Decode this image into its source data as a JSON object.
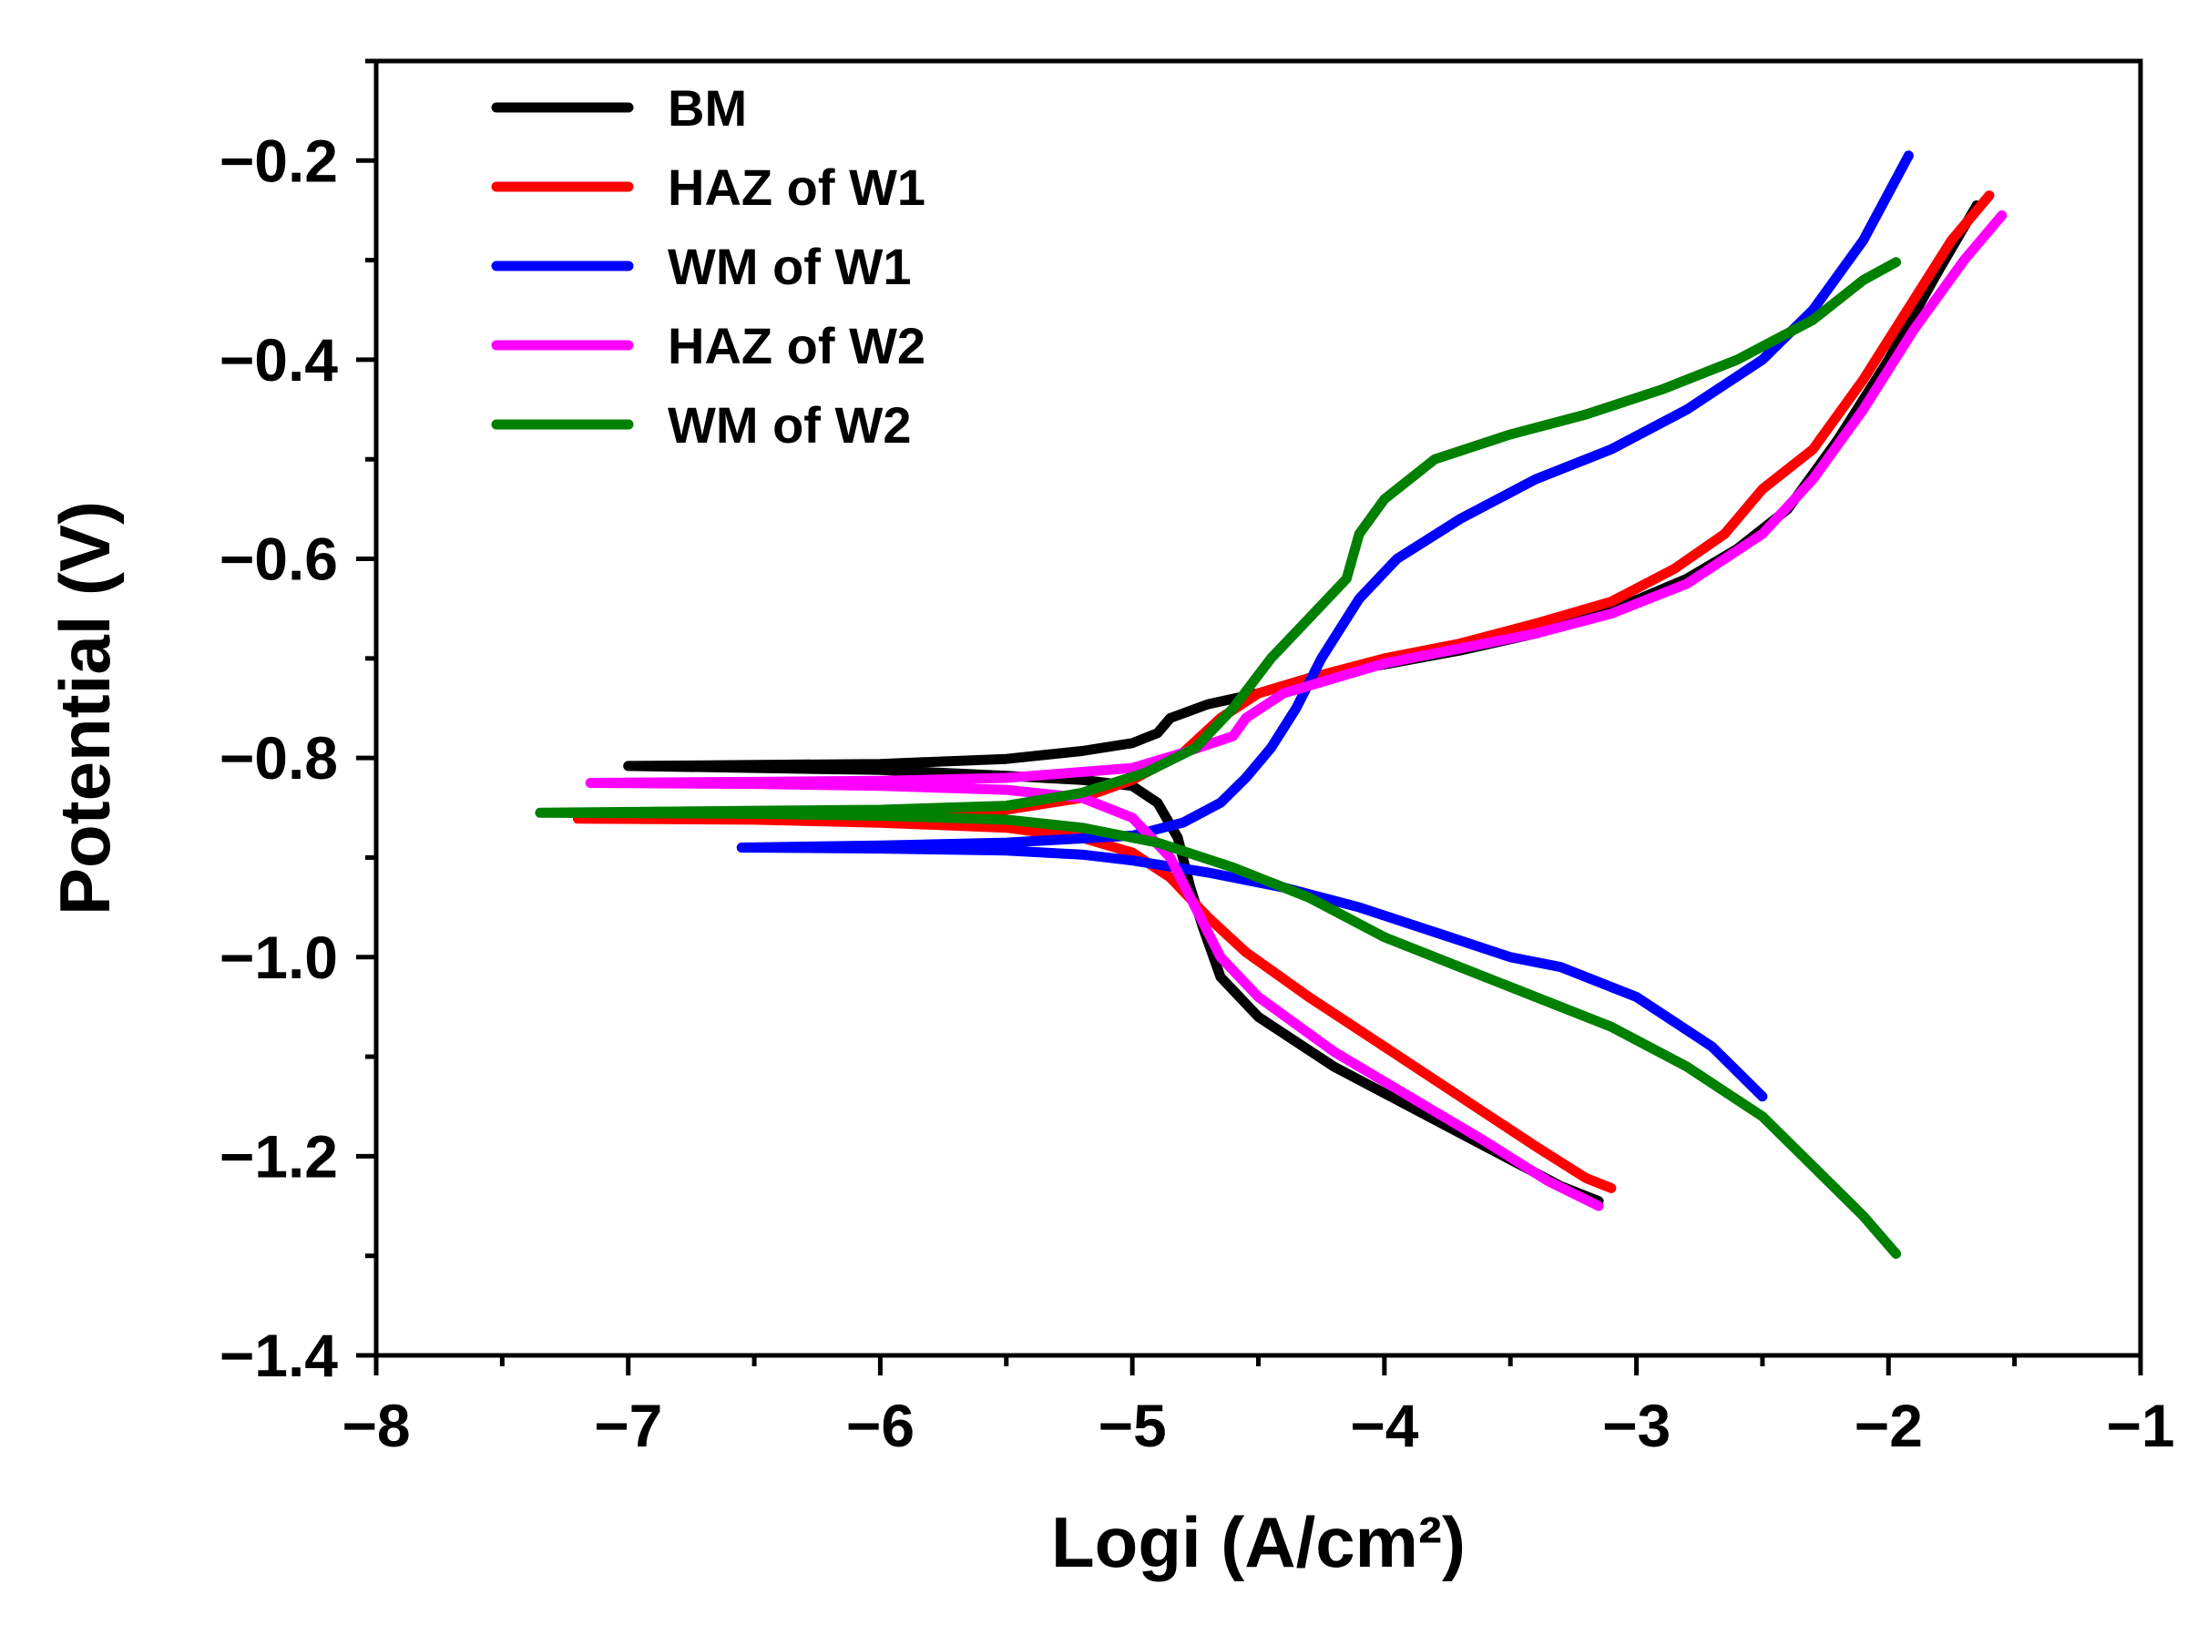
{
  "chart_data": {
    "type": "line",
    "title": "",
    "xlabel": "Logi (A/cm²)",
    "ylabel": "Potential (V)",
    "xlim": [
      -8,
      -1
    ],
    "ylim": [
      -1.4,
      -0.1
    ],
    "x_ticks": [
      -8,
      -7,
      -6,
      -5,
      -4,
      -3,
      -2,
      -1
    ],
    "x_tick_labels": [
      "−8",
      "−7",
      "−6",
      "−5",
      "−4",
      "−3",
      "−2",
      "−1"
    ],
    "y_ticks": [
      -0.2,
      -0.4,
      -0.6,
      -0.8,
      -1.0,
      -1.2,
      -1.4
    ],
    "y_tick_labels": [
      "−0.2",
      "−0.4",
      "−0.6",
      "−0.8",
      "−1.0",
      "−1.2",
      "−1.4"
    ],
    "grid": false,
    "legend_position": "top-left",
    "series": [
      {
        "name": "BM",
        "color": "#000000",
        "points": [
          [
            -7.0,
            -0.808
          ],
          [
            -6.0,
            -0.806
          ],
          [
            -5.5,
            -0.801
          ],
          [
            -5.2,
            -0.793
          ],
          [
            -5.0,
            -0.785
          ],
          [
            -4.9,
            -0.775
          ],
          [
            -4.85,
            -0.76
          ],
          [
            -4.7,
            -0.746
          ],
          [
            -4.5,
            -0.735
          ],
          [
            -4.3,
            -0.72
          ],
          [
            -4.0,
            -0.706
          ],
          [
            -3.7,
            -0.692
          ],
          [
            -3.4,
            -0.675
          ],
          [
            -3.1,
            -0.652
          ],
          [
            -2.8,
            -0.62
          ],
          [
            -2.6,
            -0.59
          ],
          [
            -2.4,
            -0.55
          ],
          [
            -2.2,
            -0.48
          ],
          [
            -2.0,
            -0.4
          ],
          [
            -1.8,
            -0.31
          ],
          [
            -1.65,
            -0.245
          ],
          null,
          [
            -7.0,
            -0.808
          ],
          [
            -6.0,
            -0.812
          ],
          [
            -5.5,
            -0.818
          ],
          [
            -5.2,
            -0.822
          ],
          [
            -5.0,
            -0.828
          ],
          [
            -4.9,
            -0.845
          ],
          [
            -4.82,
            -0.88
          ],
          [
            -4.77,
            -0.93
          ],
          [
            -4.72,
            -0.97
          ],
          [
            -4.65,
            -1.02
          ],
          [
            -4.5,
            -1.06
          ],
          [
            -4.2,
            -1.11
          ],
          [
            -3.9,
            -1.15
          ],
          [
            -3.6,
            -1.19
          ],
          [
            -3.3,
            -1.23
          ],
          [
            -3.15,
            -1.245
          ]
        ]
      },
      {
        "name": "HAZ of W1",
        "color": "#ff0000",
        "points": [
          [
            -7.2,
            -0.861
          ],
          [
            -6.5,
            -0.86
          ],
          [
            -6.0,
            -0.858
          ],
          [
            -5.5,
            -0.852
          ],
          [
            -5.2,
            -0.84
          ],
          [
            -5.0,
            -0.822
          ],
          [
            -4.8,
            -0.795
          ],
          [
            -4.65,
            -0.76
          ],
          [
            -4.5,
            -0.735
          ],
          [
            -4.3,
            -0.72
          ],
          [
            -4.0,
            -0.7
          ],
          [
            -3.7,
            -0.685
          ],
          [
            -3.4,
            -0.665
          ],
          [
            -3.1,
            -0.643
          ],
          [
            -2.85,
            -0.61
          ],
          [
            -2.65,
            -0.575
          ],
          [
            -2.5,
            -0.53
          ],
          [
            -2.3,
            -0.49
          ],
          [
            -2.1,
            -0.42
          ],
          [
            -1.9,
            -0.34
          ],
          [
            -1.75,
            -0.28
          ],
          [
            -1.6,
            -0.235
          ],
          null,
          [
            -7.2,
            -0.861
          ],
          [
            -6.5,
            -0.862
          ],
          [
            -6.0,
            -0.865
          ],
          [
            -5.5,
            -0.87
          ],
          [
            -5.2,
            -0.88
          ],
          [
            -5.0,
            -0.895
          ],
          [
            -4.85,
            -0.92
          ],
          [
            -4.7,
            -0.96
          ],
          [
            -4.55,
            -0.995
          ],
          [
            -4.3,
            -1.04
          ],
          [
            -4.0,
            -1.09
          ],
          [
            -3.7,
            -1.14
          ],
          [
            -3.4,
            -1.19
          ],
          [
            -3.2,
            -1.222
          ],
          [
            -3.1,
            -1.232
          ]
        ]
      },
      {
        "name": "WM of W1",
        "color": "#0000ff",
        "points": [
          [
            -6.55,
            -0.89
          ],
          [
            -6.0,
            -0.888
          ],
          [
            -5.5,
            -0.885
          ],
          [
            -5.0,
            -0.878
          ],
          [
            -4.8,
            -0.865
          ],
          [
            -4.65,
            -0.845
          ],
          [
            -4.55,
            -0.82
          ],
          [
            -4.45,
            -0.79
          ],
          [
            -4.35,
            -0.75
          ],
          [
            -4.25,
            -0.7
          ],
          [
            -4.1,
            -0.64
          ],
          [
            -3.95,
            -0.6
          ],
          [
            -3.7,
            -0.56
          ],
          [
            -3.4,
            -0.52
          ],
          [
            -3.1,
            -0.49
          ],
          [
            -2.8,
            -0.45
          ],
          [
            -2.5,
            -0.4
          ],
          [
            -2.3,
            -0.35
          ],
          [
            -2.1,
            -0.28
          ],
          [
            -1.92,
            -0.195
          ],
          null,
          [
            -6.55,
            -0.89
          ],
          [
            -6.0,
            -0.891
          ],
          [
            -5.5,
            -0.893
          ],
          [
            -5.2,
            -0.897
          ],
          [
            -5.0,
            -0.903
          ],
          [
            -4.7,
            -0.915
          ],
          [
            -4.4,
            -0.93
          ],
          [
            -4.1,
            -0.95
          ],
          [
            -3.8,
            -0.975
          ],
          [
            -3.5,
            -1.0
          ],
          [
            -3.3,
            -1.01
          ],
          [
            -3.0,
            -1.04
          ],
          [
            -2.7,
            -1.09
          ],
          [
            -2.5,
            -1.14
          ]
        ]
      },
      {
        "name": "HAZ of W2",
        "color": "#ff00ff",
        "points": [
          [
            -7.15,
            -0.825
          ],
          [
            -6.5,
            -0.824
          ],
          [
            -6.0,
            -0.823
          ],
          [
            -5.5,
            -0.82
          ],
          [
            -5.0,
            -0.81
          ],
          [
            -4.8,
            -0.795
          ],
          [
            -4.6,
            -0.778
          ],
          [
            -4.55,
            -0.76
          ],
          [
            -4.4,
            -0.735
          ],
          [
            -4.2,
            -0.72
          ],
          [
            -4.0,
            -0.705
          ],
          [
            -3.7,
            -0.69
          ],
          [
            -3.4,
            -0.675
          ],
          [
            -3.1,
            -0.655
          ],
          [
            -2.8,
            -0.625
          ],
          [
            -2.5,
            -0.575
          ],
          [
            -2.3,
            -0.52
          ],
          [
            -2.1,
            -0.45
          ],
          [
            -1.9,
            -0.37
          ],
          [
            -1.7,
            -0.3
          ],
          [
            -1.55,
            -0.255
          ],
          null,
          [
            -7.15,
            -0.825
          ],
          [
            -6.5,
            -0.826
          ],
          [
            -6.0,
            -0.828
          ],
          [
            -5.5,
            -0.832
          ],
          [
            -5.2,
            -0.84
          ],
          [
            -5.0,
            -0.86
          ],
          [
            -4.85,
            -0.9
          ],
          [
            -4.75,
            -0.95
          ],
          [
            -4.65,
            -1.0
          ],
          [
            -4.5,
            -1.04
          ],
          [
            -4.2,
            -1.095
          ],
          [
            -3.9,
            -1.14
          ],
          [
            -3.6,
            -1.185
          ],
          [
            -3.35,
            -1.225
          ],
          [
            -3.15,
            -1.25
          ]
        ]
      },
      {
        "name": "WM of W2",
        "color": "#008000",
        "points": [
          [
            -7.35,
            -0.855
          ],
          [
            -6.5,
            -0.853
          ],
          [
            -6.0,
            -0.852
          ],
          [
            -5.5,
            -0.848
          ],
          [
            -5.2,
            -0.835
          ],
          [
            -4.95,
            -0.815
          ],
          [
            -4.75,
            -0.79
          ],
          [
            -4.6,
            -0.75
          ],
          [
            -4.45,
            -0.7
          ],
          [
            -4.3,
            -0.66
          ],
          [
            -4.15,
            -0.62
          ],
          [
            -4.1,
            -0.575
          ],
          [
            -4.0,
            -0.54
          ],
          [
            -3.8,
            -0.5
          ],
          [
            -3.5,
            -0.475
          ],
          [
            -3.2,
            -0.455
          ],
          [
            -2.9,
            -0.43
          ],
          [
            -2.6,
            -0.4
          ],
          [
            -2.3,
            -0.36
          ],
          [
            -2.1,
            -0.32
          ],
          [
            -1.97,
            -0.302
          ],
          null,
          [
            -7.35,
            -0.855
          ],
          [
            -6.5,
            -0.856
          ],
          [
            -6.0,
            -0.858
          ],
          [
            -5.5,
            -0.862
          ],
          [
            -5.2,
            -0.87
          ],
          [
            -4.9,
            -0.885
          ],
          [
            -4.6,
            -0.91
          ],
          [
            -4.3,
            -0.94
          ],
          [
            -4.0,
            -0.98
          ],
          [
            -3.7,
            -1.01
          ],
          [
            -3.4,
            -1.04
          ],
          [
            -3.1,
            -1.07
          ],
          [
            -2.8,
            -1.11
          ],
          [
            -2.5,
            -1.16
          ],
          [
            -2.3,
            -1.21
          ],
          [
            -2.1,
            -1.26
          ],
          [
            -1.97,
            -1.298
          ]
        ]
      }
    ]
  }
}
